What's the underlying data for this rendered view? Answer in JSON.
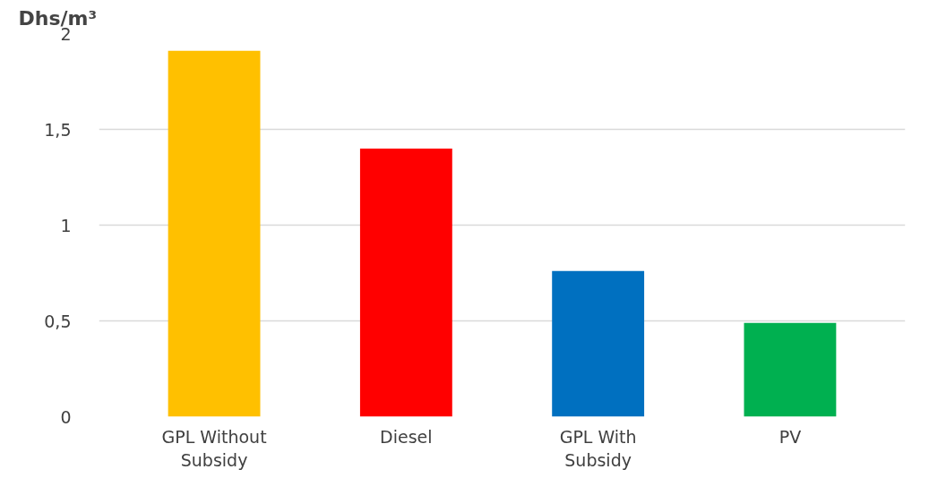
{
  "chart_data": {
    "type": "bar",
    "ylabel": "Dhs/m³",
    "categories": [
      "GPL Without Subsidy",
      "Diesel",
      "GPL With Subsidy",
      "PV"
    ],
    "values": [
      1.91,
      1.4,
      0.76,
      0.49
    ],
    "colors": [
      "#ffc000",
      "#ff0000",
      "#0070c0",
      "#00b050"
    ],
    "ylim": [
      0,
      2
    ],
    "yticks": [
      0,
      {
        "value": 0.5,
        "label": "0,5"
      },
      1,
      {
        "value": 1.5,
        "label": "1,5"
      },
      2
    ],
    "grid": "y"
  }
}
